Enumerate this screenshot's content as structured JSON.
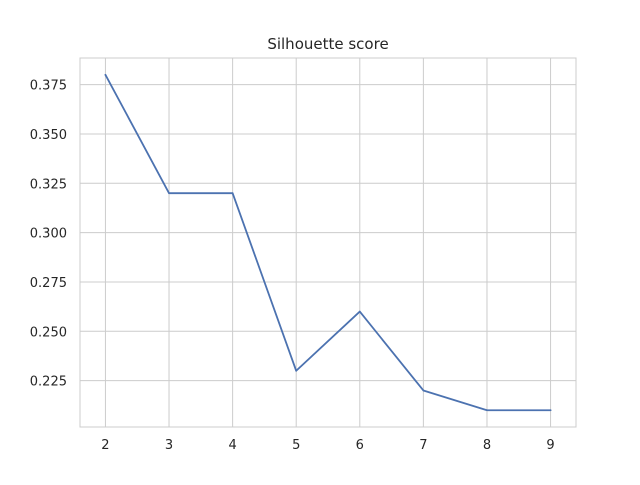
{
  "chart_data": {
    "type": "line",
    "title": "Silhouette score",
    "xlabel": "",
    "ylabel": "",
    "x": [
      2,
      3,
      4,
      5,
      6,
      7,
      8,
      9
    ],
    "series": [
      {
        "values": [
          0.38,
          0.32,
          0.32,
          0.23,
          0.26,
          0.22,
          0.21,
          0.21
        ],
        "color": "#4c72b0"
      }
    ],
    "xticks": [
      "2",
      "3",
      "4",
      "5",
      "6",
      "7",
      "8",
      "9"
    ],
    "yticks": [
      "0.225",
      "0.250",
      "0.275",
      "0.300",
      "0.325",
      "0.350",
      "0.375"
    ],
    "xlim": [
      1.6,
      9.4
    ],
    "ylim": [
      0.2015,
      0.3885
    ],
    "grid": true,
    "legend": "none",
    "colors": {
      "grid": "#cccccc",
      "spine": "#cccccc",
      "text": "#262626",
      "line": "#4c72b0"
    }
  }
}
